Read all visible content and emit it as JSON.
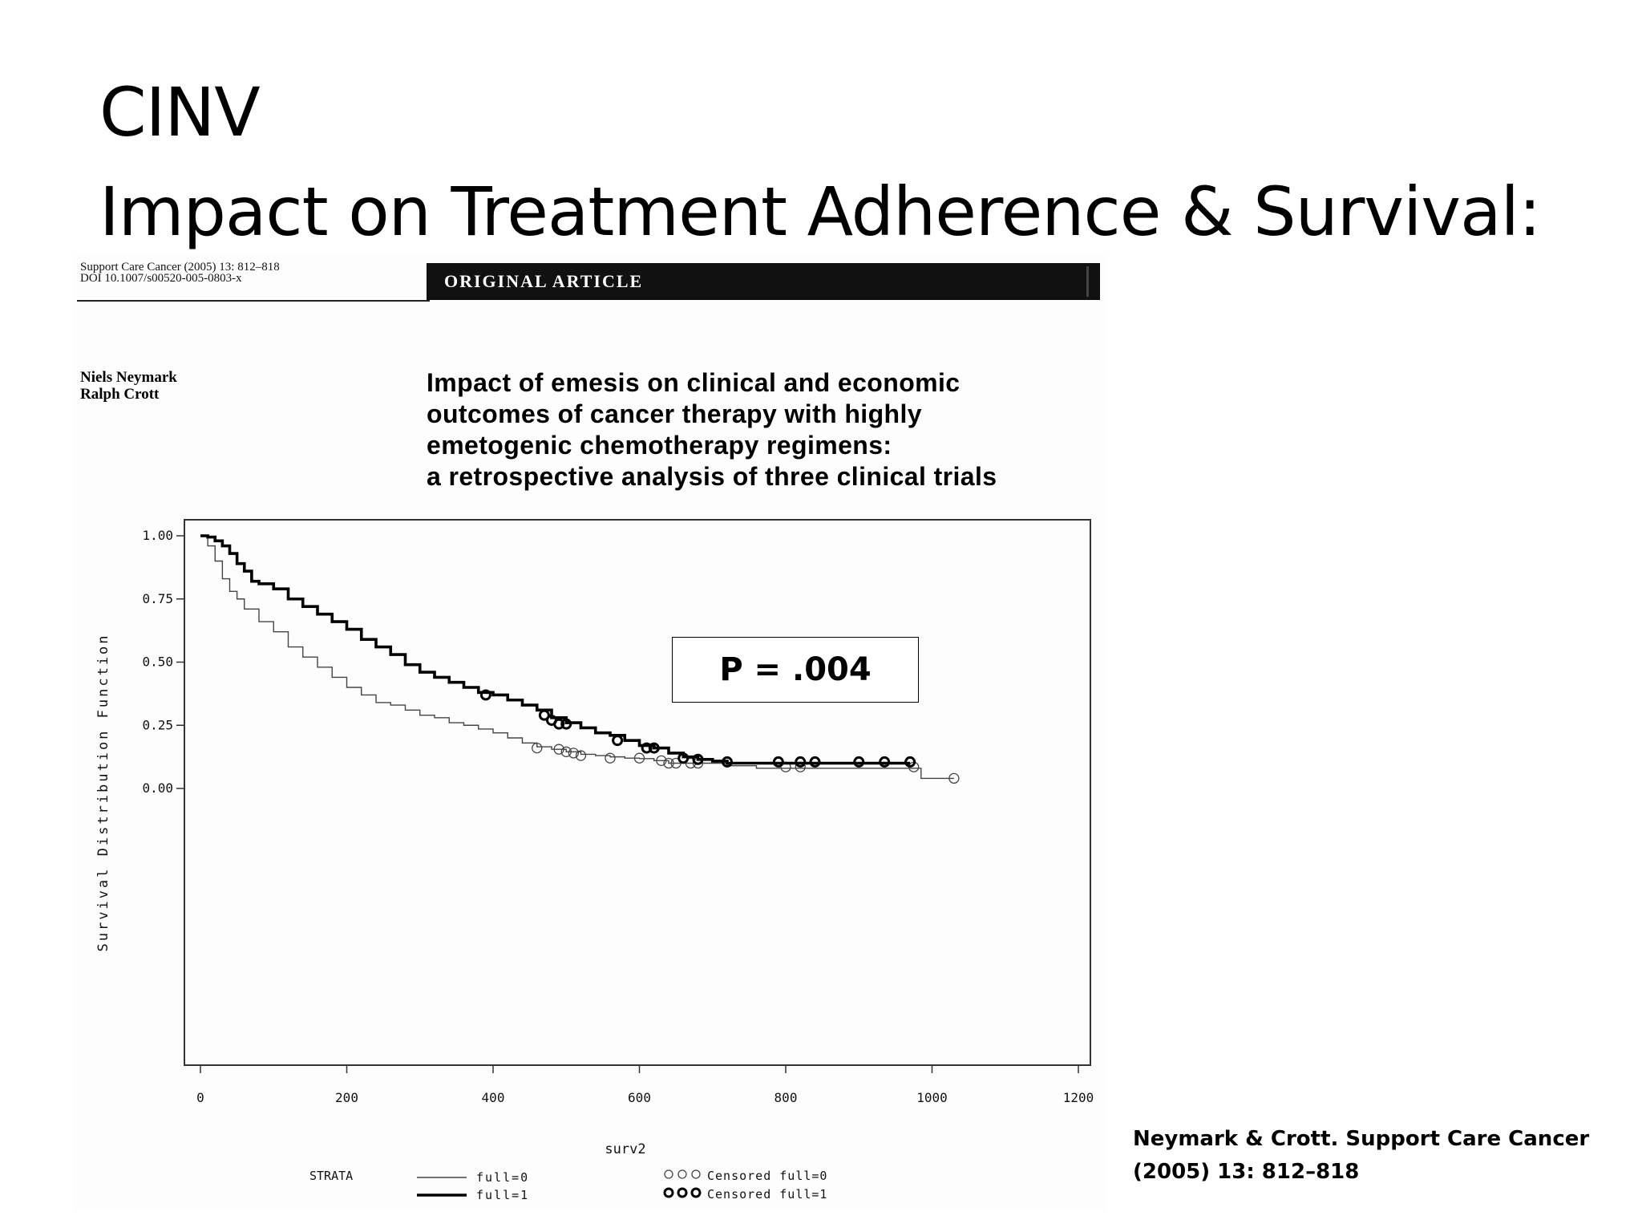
{
  "slide": {
    "title_line1": "CINV",
    "title_line2": "Impact on Treatment Adherence & Survival:",
    "citation_line1": "Neymark & Crott. Support Care Cancer",
    "citation_line2": "(2005) 13: 812–818"
  },
  "article": {
    "journal_line1": "Support Care Cancer (2005) 13: 812–818",
    "journal_line2": "DOI 10.1007/s00520-005-0803-x",
    "banner": "ORIGINAL ARTICLE",
    "author1": "Niels Neymark",
    "author2": "Ralph Crott",
    "title_line1": "Impact of emesis on clinical and economic",
    "title_line2": "outcomes of cancer therapy with highly",
    "title_line3": "emetogenic chemotherapy regimens:",
    "title_line4": "a retrospective analysis of three clinical trials"
  },
  "annotation": {
    "pvalue": "P = .004"
  },
  "chart_data": {
    "type": "line",
    "chart_subtype": "kaplan-meier step",
    "xlabel": "surv2",
    "ylabel": "Survival Distribution Function",
    "xlim": [
      0,
      1200
    ],
    "ylim": [
      0,
      1
    ],
    "x_ticks": [
      "0",
      "200",
      "400",
      "600",
      "800",
      "1000",
      "1200"
    ],
    "y_ticks": [
      "0.00",
      "0.25",
      "0.50",
      "0.75",
      "1.00"
    ],
    "grid": false,
    "legend": {
      "title": "STRATA",
      "placement": "bottom",
      "entries": [
        "full=0",
        "full=1",
        "Censored full=0",
        "Censored full=1"
      ]
    },
    "series": [
      {
        "name": "full=0",
        "stroke": "#444444",
        "line_weight": "thin",
        "points": [
          [
            0,
            1.0
          ],
          [
            10,
            0.96
          ],
          [
            20,
            0.9
          ],
          [
            30,
            0.83
          ],
          [
            40,
            0.78
          ],
          [
            50,
            0.75
          ],
          [
            60,
            0.71
          ],
          [
            80,
            0.66
          ],
          [
            100,
            0.62
          ],
          [
            120,
            0.56
          ],
          [
            140,
            0.52
          ],
          [
            160,
            0.48
          ],
          [
            180,
            0.44
          ],
          [
            200,
            0.4
          ],
          [
            220,
            0.37
          ],
          [
            240,
            0.34
          ],
          [
            260,
            0.33
          ],
          [
            280,
            0.31
          ],
          [
            300,
            0.29
          ],
          [
            320,
            0.28
          ],
          [
            340,
            0.26
          ],
          [
            360,
            0.25
          ],
          [
            380,
            0.235
          ],
          [
            400,
            0.22
          ],
          [
            420,
            0.2
          ],
          [
            440,
            0.18
          ],
          [
            460,
            0.165
          ],
          [
            480,
            0.155
          ],
          [
            500,
            0.145
          ],
          [
            520,
            0.135
          ],
          [
            540,
            0.13
          ],
          [
            560,
            0.125
          ],
          [
            580,
            0.12
          ],
          [
            600,
            0.118
          ],
          [
            620,
            0.11
          ],
          [
            640,
            0.1
          ],
          [
            680,
            0.1
          ],
          [
            700,
            0.1
          ],
          [
            720,
            0.09
          ],
          [
            750,
            0.09
          ],
          [
            760,
            0.08
          ],
          [
            820,
            0.08
          ],
          [
            900,
            0.08
          ],
          [
            980,
            0.08
          ],
          [
            985,
            0.04
          ],
          [
            1030,
            0.04
          ]
        ],
        "censored": [
          [
            460,
            0.16
          ],
          [
            490,
            0.155
          ],
          [
            500,
            0.145
          ],
          [
            510,
            0.14
          ],
          [
            520,
            0.13
          ],
          [
            560,
            0.12
          ],
          [
            600,
            0.12
          ],
          [
            630,
            0.11
          ],
          [
            640,
            0.1
          ],
          [
            650,
            0.1
          ],
          [
            670,
            0.1
          ],
          [
            680,
            0.1
          ],
          [
            800,
            0.085
          ],
          [
            820,
            0.085
          ],
          [
            975,
            0.085
          ],
          [
            1030,
            0.04
          ]
        ]
      },
      {
        "name": "full=1",
        "stroke": "#000000",
        "line_weight": "thick",
        "points": [
          [
            0,
            1.0
          ],
          [
            10,
            0.995
          ],
          [
            20,
            0.98
          ],
          [
            30,
            0.96
          ],
          [
            40,
            0.93
          ],
          [
            50,
            0.89
          ],
          [
            60,
            0.86
          ],
          [
            70,
            0.82
          ],
          [
            80,
            0.81
          ],
          [
            100,
            0.79
          ],
          [
            120,
            0.75
          ],
          [
            140,
            0.72
          ],
          [
            160,
            0.69
          ],
          [
            180,
            0.66
          ],
          [
            200,
            0.63
          ],
          [
            220,
            0.59
          ],
          [
            240,
            0.56
          ],
          [
            260,
            0.53
          ],
          [
            280,
            0.49
          ],
          [
            300,
            0.46
          ],
          [
            320,
            0.44
          ],
          [
            340,
            0.42
          ],
          [
            360,
            0.4
          ],
          [
            380,
            0.38
          ],
          [
            400,
            0.37
          ],
          [
            420,
            0.35
          ],
          [
            440,
            0.33
          ],
          [
            460,
            0.31
          ],
          [
            480,
            0.28
          ],
          [
            500,
            0.26
          ],
          [
            520,
            0.24
          ],
          [
            540,
            0.22
          ],
          [
            560,
            0.21
          ],
          [
            580,
            0.19
          ],
          [
            600,
            0.17
          ],
          [
            620,
            0.16
          ],
          [
            640,
            0.14
          ],
          [
            660,
            0.125
          ],
          [
            680,
            0.115
          ],
          [
            700,
            0.108
          ],
          [
            720,
            0.1
          ],
          [
            800,
            0.1
          ],
          [
            850,
            0.1
          ],
          [
            900,
            0.1
          ],
          [
            970,
            0.1
          ]
        ],
        "censored": [
          [
            390,
            0.37
          ],
          [
            470,
            0.29
          ],
          [
            480,
            0.27
          ],
          [
            490,
            0.255
          ],
          [
            500,
            0.255
          ],
          [
            570,
            0.19
          ],
          [
            610,
            0.16
          ],
          [
            620,
            0.16
          ],
          [
            660,
            0.12
          ],
          [
            680,
            0.115
          ],
          [
            720,
            0.105
          ],
          [
            790,
            0.105
          ],
          [
            820,
            0.105
          ],
          [
            840,
            0.105
          ],
          [
            900,
            0.105
          ],
          [
            935,
            0.105
          ],
          [
            970,
            0.105
          ]
        ]
      }
    ]
  }
}
